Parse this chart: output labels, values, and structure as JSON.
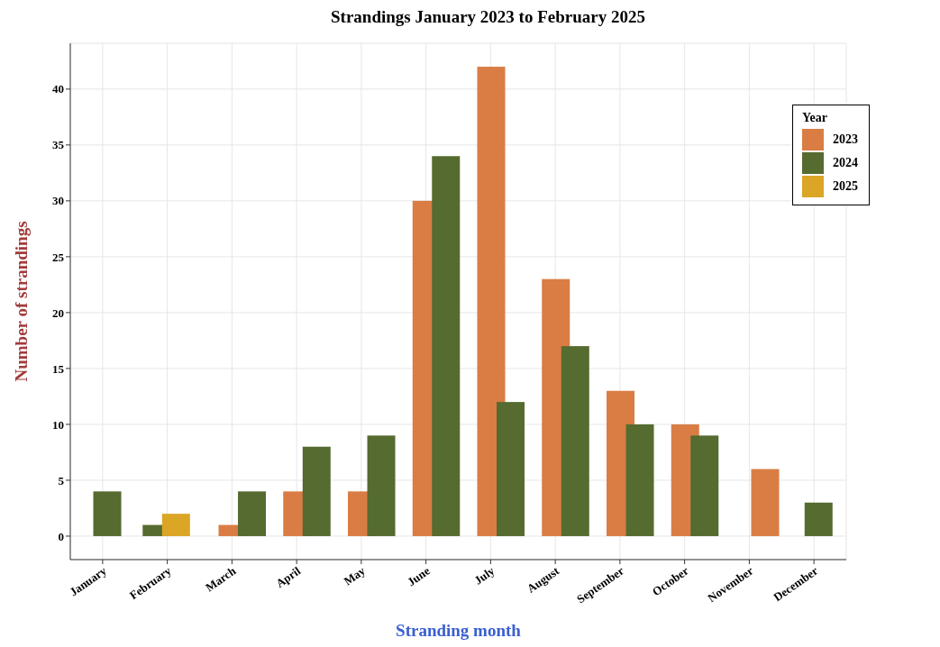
{
  "chart_data": {
    "type": "bar",
    "title": "Strandings January 2023 to February 2025",
    "xlabel": "Stranding month",
    "ylabel": "Number of strandings",
    "legend_title": "Year",
    "categories": [
      "January",
      "February",
      "March",
      "April",
      "May",
      "June",
      "July",
      "August",
      "September",
      "October",
      "November",
      "December"
    ],
    "series": [
      {
        "name": "2023",
        "color": "#d97d45",
        "values": [
          null,
          null,
          1,
          4,
          4,
          30,
          42,
          23,
          13,
          10,
          6,
          null
        ]
      },
      {
        "name": "2024",
        "color": "#556b2f",
        "values": [
          4,
          1,
          4,
          8,
          9,
          34,
          12,
          17,
          10,
          9,
          null,
          3
        ]
      },
      {
        "name": "2025",
        "color": "#dba525",
        "values": [
          null,
          2,
          null,
          null,
          null,
          null,
          null,
          null,
          null,
          null,
          null,
          null
        ]
      }
    ],
    "ylim": [
      -2.1,
      44.1
    ],
    "yticks": [
      0,
      5,
      10,
      15,
      20,
      25,
      30,
      35,
      40
    ],
    "grid": true,
    "legend": "top right"
  }
}
